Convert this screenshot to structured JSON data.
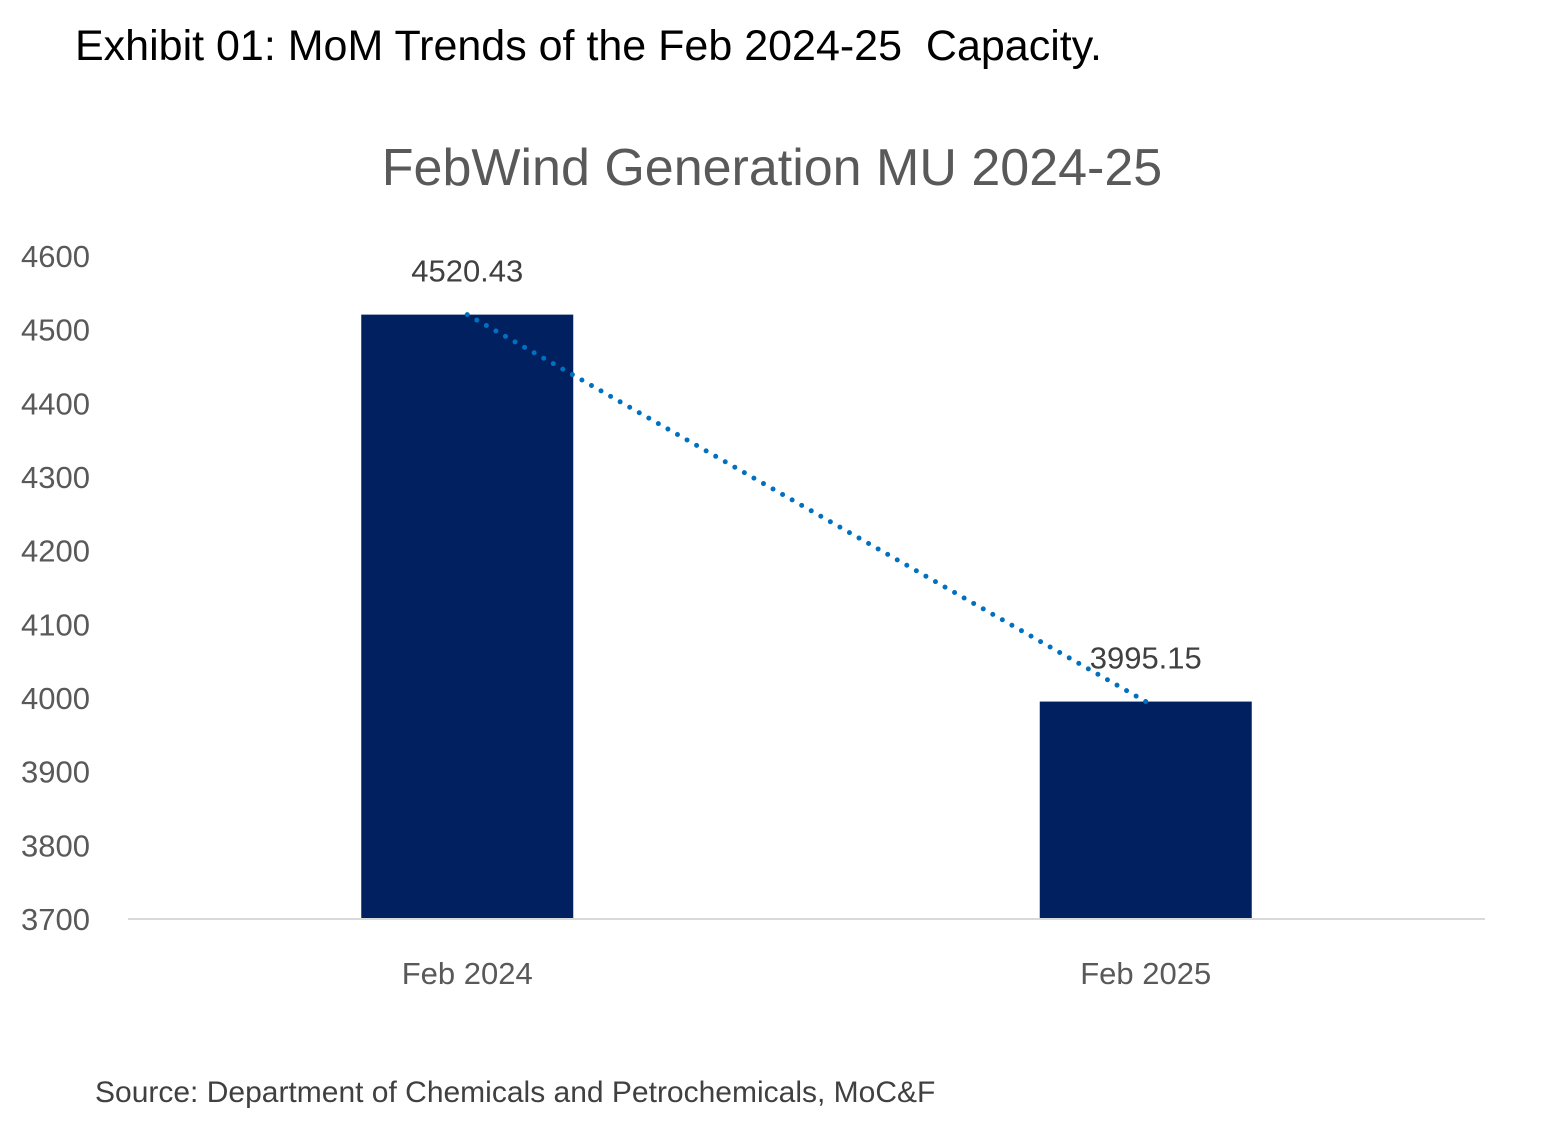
{
  "exhibit_title": "Exhibit 01: MoM Trends of the Feb 2024-25  Capacity.",
  "source": "Source: Department of Chemicals and Petrochemicals, MoC&F",
  "colors": {
    "bar": "#002060",
    "trendline": "#0070C0",
    "axis": "#D9D9D9"
  },
  "chart_data": {
    "type": "bar",
    "title": "FebWind Generation MU 2024-25",
    "categories": [
      "Feb 2024",
      "Feb 2025"
    ],
    "values": [
      4520.43,
      3995.15
    ],
    "data_labels": [
      "4520.43",
      "3995.15"
    ],
    "ylim": [
      3700,
      4600
    ],
    "yticks": [
      3700,
      3800,
      3900,
      4000,
      4100,
      4200,
      4300,
      4400,
      4500,
      4600
    ],
    "trendline": {
      "type": "linear",
      "style": "dotted"
    },
    "grid": false,
    "legend": "none",
    "xlabel": "",
    "ylabel": ""
  }
}
